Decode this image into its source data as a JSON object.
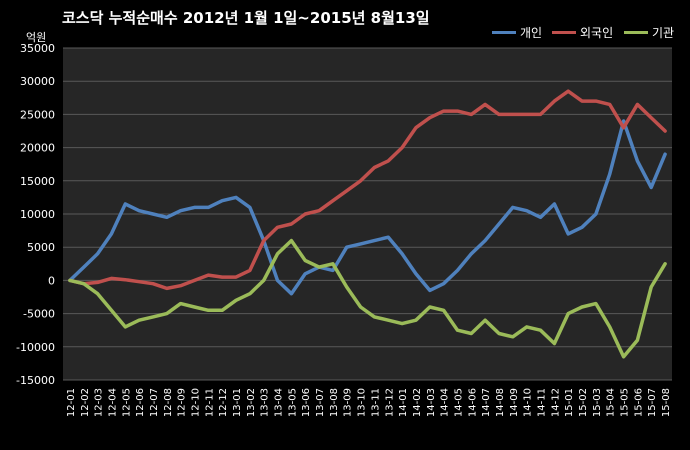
{
  "chart_data": {
    "type": "line",
    "title": "코스닥  누적순매수 2012년 1월 1일~2015년 8월13일",
    "unit_label": "억원",
    "ylim": [
      -15000,
      35000
    ],
    "yticks": [
      -15000,
      -10000,
      -5000,
      0,
      5000,
      10000,
      15000,
      20000,
      25000,
      30000,
      35000
    ],
    "grid": true,
    "legend_position": "top-right",
    "colors": {
      "background": "#000000",
      "plot_area": "#262626",
      "grid": "#595959",
      "text": "#ffffff"
    },
    "categories": [
      "12-01",
      "12-02",
      "12-03",
      "12-04",
      "12-05",
      "12-06",
      "12-07",
      "12-08",
      "12-09",
      "12-10",
      "12-11",
      "12-12",
      "13-01",
      "13-02",
      "13-03",
      "13-04",
      "13-05",
      "13-06",
      "13-07",
      "13-08",
      "13-09",
      "13-10",
      "13-11",
      "13-12",
      "14-01",
      "14-02",
      "14-03",
      "14-04",
      "14-05",
      "14-06",
      "14-07",
      "14-08",
      "14-09",
      "14-10",
      "14-11",
      "14-12",
      "15-01",
      "15-02",
      "15-03",
      "15-04",
      "15-05",
      "15-06",
      "15-07",
      "15-08"
    ],
    "series": [
      {
        "name": "개인",
        "color": "#4f81bd",
        "values": [
          0,
          2000,
          4000,
          7000,
          11500,
          10500,
          10000,
          9500,
          10500,
          11000,
          11000,
          12000,
          12500,
          11000,
          6000,
          0,
          -2000,
          1000,
          2000,
          1500,
          5000,
          5500,
          6000,
          6500,
          4000,
          1000,
          -1500,
          -500,
          1500,
          4000,
          6000,
          8500,
          11000,
          10500,
          9500,
          11500,
          7000,
          8000,
          10000,
          16000,
          24000,
          18000,
          14000,
          19000
        ]
      },
      {
        "name": "외국인",
        "color": "#c0504d",
        "values": [
          0,
          -500,
          -300,
          300,
          100,
          -200,
          -500,
          -1200,
          -800,
          0,
          800,
          500,
          500,
          1500,
          6000,
          8000,
          8500,
          10000,
          10500,
          12000,
          13500,
          15000,
          17000,
          18000,
          20000,
          23000,
          24500,
          25500,
          25500,
          25000,
          26500,
          25000,
          25000,
          25000,
          25000,
          27000,
          28500,
          27000,
          27000,
          26500,
          23000,
          26500,
          24500,
          22500
        ]
      },
      {
        "name": "기관",
        "color": "#9bbb59",
        "values": [
          0,
          -500,
          -2000,
          -4500,
          -7000,
          -6000,
          -5500,
          -5000,
          -3500,
          -4000,
          -4500,
          -4500,
          -3000,
          -2000,
          0,
          4000,
          6000,
          3000,
          2000,
          2500,
          -1000,
          -4000,
          -5500,
          -6000,
          -6500,
          -6000,
          -4000,
          -4500,
          -7500,
          -8000,
          -6000,
          -8000,
          -8500,
          -7000,
          -7500,
          -9500,
          -5000,
          -4000,
          -3500,
          -7000,
          -11500,
          -9000,
          -1000,
          2500
        ]
      }
    ]
  }
}
